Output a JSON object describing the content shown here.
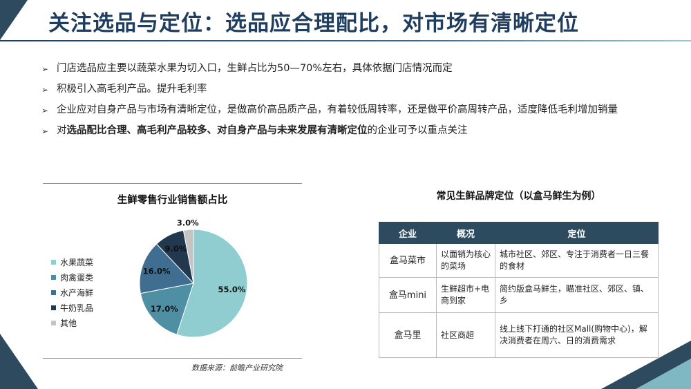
{
  "title": "关注选品与定位：选品应合理配比，对市场有清晰定位",
  "bullets": [
    {
      "text": "门店选品应主要以蔬菜水果为切入口，生鲜占比为50—70%左右，具体依据门店情况而定"
    },
    {
      "text": "积极引入高毛利产品。提升毛利率"
    },
    {
      "text": "企业应对自身产品与市场有清晰定位，是做高价高品质产品，有着较低周转率，还是做平价高周转产品，适度降低毛利增加销量"
    },
    {
      "prefix": "对",
      "bold": "选品配比合理、高毛利产品较多、对自身产品与未来发展有清晰定位",
      "suffix": "的企业可予以重点关注"
    }
  ],
  "colors": {
    "dark": "#2d4a5f",
    "title": "#1f3d5e",
    "accent": "#7fb8c2"
  },
  "chart_data": {
    "type": "pie",
    "title": "生鲜零售行业销售额占比",
    "series": [
      {
        "name": "水果蔬菜",
        "value": 55.0,
        "label": "55.0%",
        "color": "#8fcdd0"
      },
      {
        "name": "肉禽蛋类",
        "value": 17.0,
        "label": "17.0%",
        "color": "#4f8fa3"
      },
      {
        "name": "水产海鲜",
        "value": 16.0,
        "label": "16.0%",
        "color": "#3f6e91"
      },
      {
        "name": "牛奶乳品",
        "value": 9.0,
        "label": "9.0%",
        "color": "#22384e"
      },
      {
        "name": "其他",
        "value": 3.0,
        "label": "3.0%",
        "color": "#c4c4c4"
      }
    ],
    "legend_position": "left"
  },
  "source": "数据来源：前瞻产业研究院",
  "table": {
    "title": "常见生鲜品牌定位（以盒马鲜生为例）",
    "headers": [
      "企业",
      "概况",
      "定位"
    ],
    "rows": [
      [
        "盒马菜市",
        "以面销为核心的菜场",
        "城市社区、郊区、专注于消费者一日三餐的食材"
      ],
      [
        "盒马mini",
        "生鲜超市+电商到家",
        "简约版盒马鲜生，瞄准社区、郊区、镇、乡"
      ],
      [
        "盒马里",
        "社区商超",
        "线上线下打通的社区Mall(购物中心)，解决消费者在周六、日的消费需求"
      ]
    ]
  }
}
